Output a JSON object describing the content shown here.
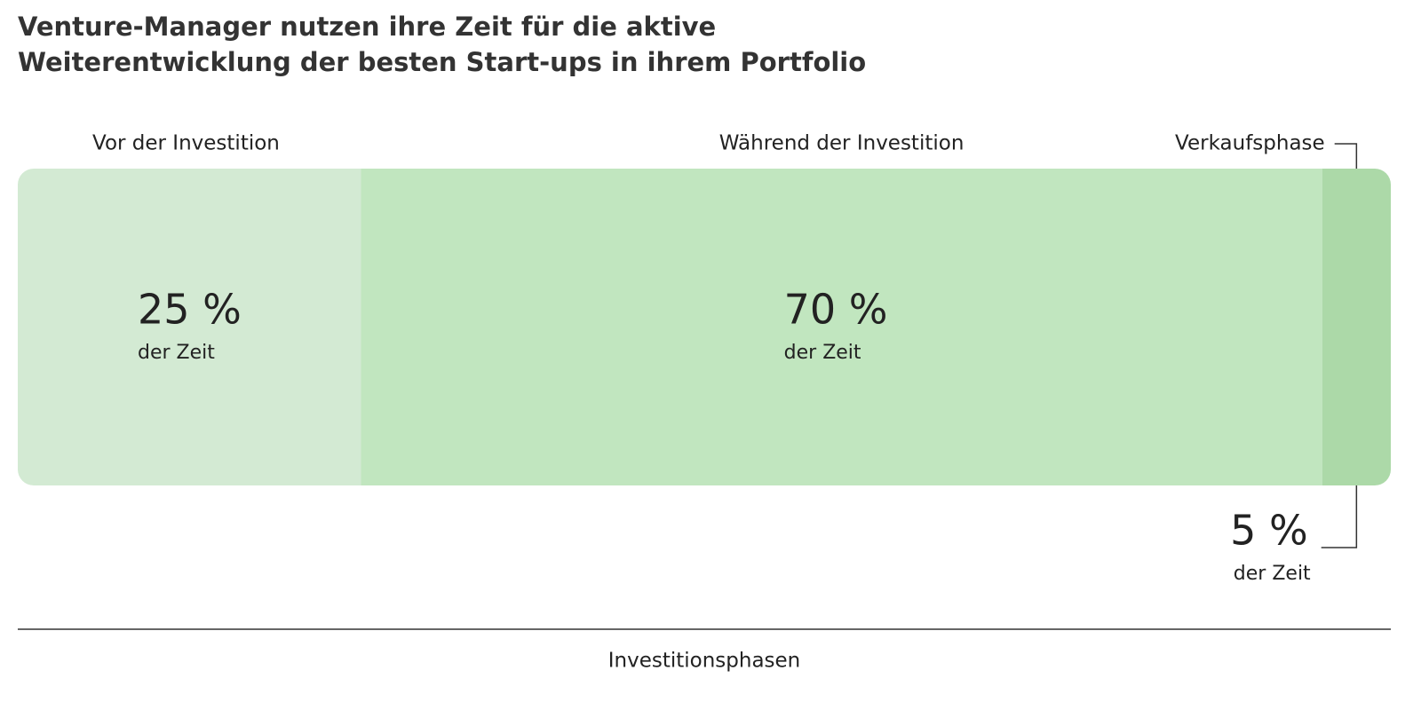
{
  "chart_data": {
    "type": "stacked-bar",
    "title": [
      "Venture-Manager nutzen ihre Zeit für die aktive",
      "Weiterentwicklung der besten Start-ups in ihrem Portfolio"
    ],
    "x_label": "Investitionsphasen",
    "xlim": [
      0,
      100
    ],
    "series": [
      {
        "name": "Vor der Investition",
        "color": "#d3ead3",
        "values": [
          25
        ],
        "value_labels": [
          "25 %"
        ],
        "unit_labels": [
          "der Zeit"
        ]
      },
      {
        "name": "Während der Investition",
        "color": "#c1e6bf",
        "values": [
          70
        ],
        "value_labels": [
          "70 %"
        ],
        "unit_labels": [
          "der Zeit"
        ]
      },
      {
        "name": "Verkaufsphase",
        "color": "#acd9a8",
        "values": [
          5
        ],
        "value_labels": [
          "5 %"
        ],
        "unit_labels": [
          "der Zeit"
        ]
      }
    ]
  }
}
